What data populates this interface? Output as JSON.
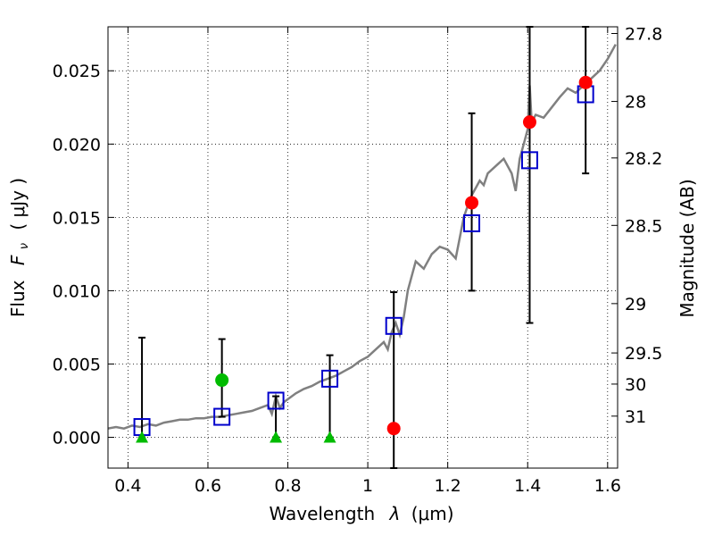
{
  "chart_data": {
    "type": "scatter",
    "xlabel_text": "Wavelength",
    "xlabel_symbol": "λ",
    "xlabel_unit": "(μm)",
    "ylabel_text": "Flux",
    "ylabel_symbol": "F",
    "ylabel_subscript": "ν",
    "ylabel_unit": "( μJy )",
    "y2label": "Magnitude (AB)",
    "xlim": [
      0.35,
      1.625
    ],
    "ylim": [
      -0.0021,
      0.028
    ],
    "grid": true,
    "x_ticks": [
      0.4,
      0.6,
      0.8,
      1.0,
      1.2,
      1.4,
      1.6
    ],
    "x_tick_labels": [
      "0.4",
      "0.6",
      "0.8",
      "1",
      "1.2",
      "1.4",
      "1.6"
    ],
    "y_ticks": [
      0.0,
      0.005,
      0.01,
      0.015,
      0.02,
      0.025
    ],
    "y_tick_labels": [
      "0.000",
      "0.005",
      "0.010",
      "0.015",
      "0.020",
      "0.025"
    ],
    "y2_ticks": [
      27.8,
      28,
      28.2,
      28.5,
      29,
      29.5,
      30,
      31
    ],
    "y2_tick_labels": [
      "27.8",
      "28",
      "28.2",
      "28.5",
      "29",
      "29.5",
      "30",
      "31"
    ],
    "colors": {
      "model": "#808080",
      "model_photometry": "#0000cc",
      "observed_red": "#ff0000",
      "observed_green": "#00bb00",
      "errorbar": "#000000"
    },
    "series": [
      {
        "kind": "model_spectrum_line",
        "x": [
          0.35,
          0.37,
          0.39,
          0.41,
          0.43,
          0.45,
          0.47,
          0.49,
          0.51,
          0.53,
          0.55,
          0.57,
          0.59,
          0.61,
          0.63,
          0.65,
          0.67,
          0.69,
          0.71,
          0.73,
          0.75,
          0.76,
          0.77,
          0.78,
          0.79,
          0.8,
          0.82,
          0.84,
          0.86,
          0.88,
          0.9,
          0.92,
          0.94,
          0.96,
          0.98,
          1.0,
          1.02,
          1.04,
          1.05,
          1.06,
          1.07,
          1.08,
          1.09,
          1.1,
          1.12,
          1.14,
          1.16,
          1.18,
          1.2,
          1.22,
          1.24,
          1.25,
          1.26,
          1.27,
          1.28,
          1.29,
          1.3,
          1.32,
          1.34,
          1.36,
          1.37,
          1.38,
          1.39,
          1.4,
          1.405,
          1.41,
          1.42,
          1.44,
          1.46,
          1.48,
          1.5,
          1.52,
          1.54,
          1.56,
          1.58,
          1.6,
          1.62
        ],
        "y": [
          0.0006,
          0.0007,
          0.0006,
          0.0008,
          0.0007,
          0.0009,
          0.0008,
          0.001,
          0.0011,
          0.0012,
          0.0012,
          0.0013,
          0.0013,
          0.0014,
          0.0014,
          0.0015,
          0.0016,
          0.0017,
          0.0018,
          0.002,
          0.0022,
          0.0016,
          0.0028,
          0.002,
          0.0024,
          0.0026,
          0.003,
          0.0033,
          0.0035,
          0.0038,
          0.004,
          0.0042,
          0.0045,
          0.0048,
          0.0052,
          0.0055,
          0.006,
          0.0065,
          0.006,
          0.0072,
          0.0078,
          0.007,
          0.0082,
          0.01,
          0.012,
          0.0115,
          0.0125,
          0.013,
          0.0128,
          0.0122,
          0.015,
          0.0158,
          0.0165,
          0.017,
          0.0175,
          0.0172,
          0.018,
          0.0185,
          0.019,
          0.018,
          0.0168,
          0.019,
          0.02,
          0.021,
          0.024,
          0.0215,
          0.022,
          0.0218,
          0.0225,
          0.0232,
          0.0238,
          0.0235,
          0.024,
          0.0245,
          0.025,
          0.0258,
          0.0268
        ]
      },
      {
        "kind": "model_photometry_squares",
        "x": [
          0.435,
          0.635,
          0.77,
          0.905,
          1.065,
          1.26,
          1.405,
          1.545
        ],
        "y": [
          0.0007,
          0.0014,
          0.0025,
          0.004,
          0.0076,
          0.0146,
          0.0189,
          0.0234
        ]
      },
      {
        "kind": "observed_red_circles",
        "x": [
          1.065,
          1.26,
          1.405,
          1.545
        ],
        "y": [
          0.0006,
          0.016,
          0.0215,
          0.0242
        ]
      },
      {
        "kind": "observed_green_circles",
        "x": [
          0.635
        ],
        "y": [
          0.0039
        ]
      },
      {
        "kind": "upper_limit_green_triangles",
        "x": [
          0.435,
          0.77,
          0.905
        ],
        "y": [
          0.0,
          0.0,
          0.0
        ]
      },
      {
        "kind": "errorbars",
        "x": [
          0.435,
          0.635,
          0.77,
          0.905,
          1.065,
          1.26,
          1.405,
          1.545
        ],
        "low": [
          0.0,
          0.0014,
          0.0,
          0.0,
          -0.0021,
          0.01,
          0.0078,
          0.018
        ],
        "high": [
          0.0068,
          0.0067,
          0.0028,
          0.0056,
          0.0099,
          0.0221,
          0.028,
          0.028
        ]
      }
    ]
  }
}
